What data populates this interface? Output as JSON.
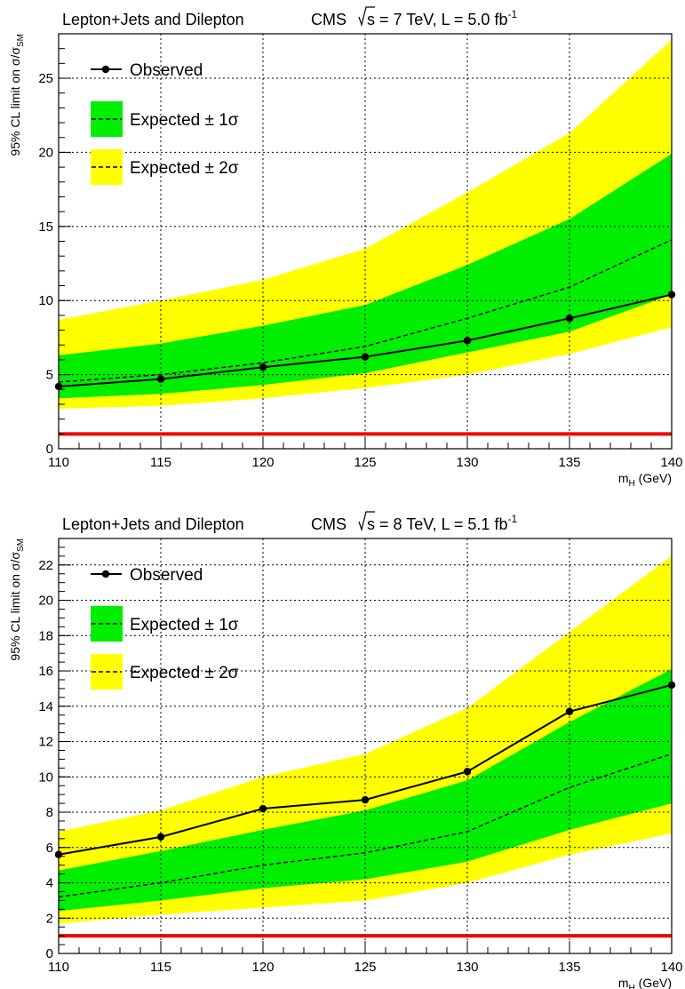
{
  "chart_data": [
    {
      "type": "line",
      "title_left": "Lepton+Jets and Dilepton",
      "title_right": "CMS",
      "energy_label": "s = 7 TeV, L = 5.0 fb",
      "lumi_exp": "-1",
      "xlabel": "m",
      "xlabel_sub": "H",
      "xlabel_unit": " (GeV)",
      "ylabel": "95% CL limit on σ/σ",
      "ylabel_sub": "SM",
      "xlim": [
        110,
        140
      ],
      "ylim": [
        0,
        28
      ],
      "xticks": [
        110,
        115,
        120,
        125,
        130,
        135,
        140
      ],
      "yticks": [
        0,
        5,
        10,
        15,
        20,
        25
      ],
      "grid": true,
      "legend_position": "top-left",
      "legend": [
        "Observed",
        "Expected ± 1σ",
        "Expected ± 2σ"
      ],
      "x": [
        110,
        115,
        120,
        125,
        130,
        135,
        140
      ],
      "reference_line": 1,
      "series": [
        {
          "name": "Observed",
          "values": [
            4.2,
            4.7,
            5.5,
            6.2,
            7.3,
            8.8,
            10.4
          ]
        },
        {
          "name": "Expected",
          "values": [
            4.5,
            5.0,
            5.8,
            6.9,
            8.8,
            10.9,
            14.1
          ]
        },
        {
          "name": "Expected ± 1σ",
          "lower": [
            3.4,
            3.7,
            4.3,
            5.1,
            6.5,
            7.9,
            10.4
          ],
          "upper": [
            6.3,
            7.1,
            8.3,
            9.7,
            12.4,
            15.5,
            19.9
          ]
        },
        {
          "name": "Expected ± 2σ",
          "lower": [
            2.7,
            2.9,
            3.4,
            4.1,
            5.0,
            6.4,
            8.2
          ],
          "upper": [
            8.7,
            10.0,
            11.4,
            13.5,
            17.3,
            21.3,
            27.6
          ]
        }
      ]
    },
    {
      "type": "line",
      "title_left": "Lepton+Jets and Dilepton",
      "title_right": "CMS",
      "energy_label": "s = 8 TeV, L = 5.1 fb",
      "lumi_exp": "-1",
      "xlabel": "m",
      "xlabel_sub": "H",
      "xlabel_unit": " (GeV)",
      "ylabel": "95% CL limit on σ/σ",
      "ylabel_sub": "SM",
      "xlim": [
        110,
        140
      ],
      "ylim": [
        0,
        23.5
      ],
      "xticks": [
        110,
        115,
        120,
        125,
        130,
        135,
        140
      ],
      "yticks": [
        0,
        2,
        4,
        6,
        8,
        10,
        12,
        14,
        16,
        18,
        20,
        22
      ],
      "grid": true,
      "legend_position": "top-left",
      "legend": [
        "Observed",
        "Expected ± 1σ",
        "Expected ± 2σ"
      ],
      "x": [
        110,
        115,
        120,
        125,
        130,
        135,
        140
      ],
      "reference_line": 1,
      "series": [
        {
          "name": "Observed",
          "values": [
            5.6,
            6.6,
            8.2,
            8.7,
            10.3,
            13.7,
            15.2
          ]
        },
        {
          "name": "Expected",
          "values": [
            3.2,
            4.0,
            5.0,
            5.7,
            6.9,
            9.4,
            11.3
          ]
        },
        {
          "name": "Expected ± 1σ",
          "lower": [
            2.4,
            3.0,
            3.7,
            4.2,
            5.2,
            7.0,
            8.5
          ],
          "upper": [
            4.7,
            5.8,
            7.0,
            8.1,
            9.8,
            13.1,
            16.1
          ]
        },
        {
          "name": "Expected ± 2σ",
          "lower": [
            1.7,
            2.2,
            2.6,
            3.0,
            4.0,
            5.6,
            6.8
          ],
          "upper": [
            6.9,
            8.1,
            10.0,
            11.3,
            13.9,
            18.2,
            22.5
          ]
        }
      ]
    }
  ]
}
